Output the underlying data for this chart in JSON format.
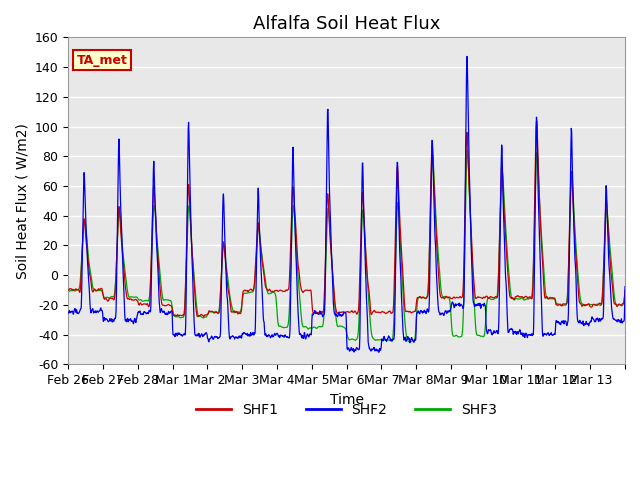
{
  "title": "Alfalfa Soil Heat Flux",
  "xlabel": "Time",
  "ylabel": "Soil Heat Flux ( W/m2)",
  "ylim": [
    -60,
    160
  ],
  "yticks": [
    -60,
    -40,
    -20,
    0,
    20,
    40,
    60,
    80,
    100,
    120,
    140,
    160
  ],
  "colors": {
    "SHF1": "#cc0000",
    "SHF2": "#0000ee",
    "SHF3": "#00aa00"
  },
  "legend_labels": [
    "SHF1",
    "SHF2",
    "SHF3"
  ],
  "annotation": "TA_met",
  "annotation_color": "#cc0000",
  "annotation_bg": "#ffffcc",
  "background_color": "#e8e8e8",
  "grid_color": "#ffffff",
  "tick_labels": [
    "Feb 26",
    "Feb 27",
    "Feb 28",
    "Mar 1",
    "Mar 2",
    "Mar 3",
    "Mar 4",
    "Mar 5",
    "Mar 6",
    "Mar 7",
    "Mar 8",
    "Mar 9",
    "Mar 10",
    "Mar 11",
    "Mar 12",
    "Mar 13"
  ],
  "n_days": 16,
  "pts_per_day": 96,
  "title_fontsize": 13,
  "axis_fontsize": 10,
  "tick_fontsize": 9,
  "day_peak_shf2": [
    71,
    95,
    80,
    109,
    57,
    61,
    89,
    115,
    80,
    79,
    94,
    152,
    92,
    111,
    103,
    60
  ],
  "day_peak_shf1": [
    40,
    50,
    65,
    67,
    25,
    38,
    63,
    60,
    60,
    79,
    95,
    103,
    80,
    110,
    75,
    55
  ],
  "day_peak_shf3": [
    42,
    50,
    55,
    55,
    25,
    38,
    58,
    55,
    55,
    60,
    93,
    100,
    80,
    95,
    75,
    53
  ],
  "day_night_shf2": [
    -24,
    -30,
    -25,
    -40,
    -42,
    -40,
    -41,
    -26,
    -50,
    -43,
    -25,
    -20,
    -38,
    -40,
    -32,
    -30
  ],
  "day_night_shf1": [
    -10,
    -16,
    -20,
    -27,
    -25,
    -10,
    -10,
    -25,
    -25,
    -25,
    -15,
    -15,
    -15,
    -15,
    -20,
    -20
  ],
  "day_night_shf3": [
    -10,
    -15,
    -17,
    -28,
    -25,
    -12,
    -35,
    -35,
    -43,
    -44,
    -15,
    -41,
    -16,
    -16,
    -20,
    -20
  ]
}
